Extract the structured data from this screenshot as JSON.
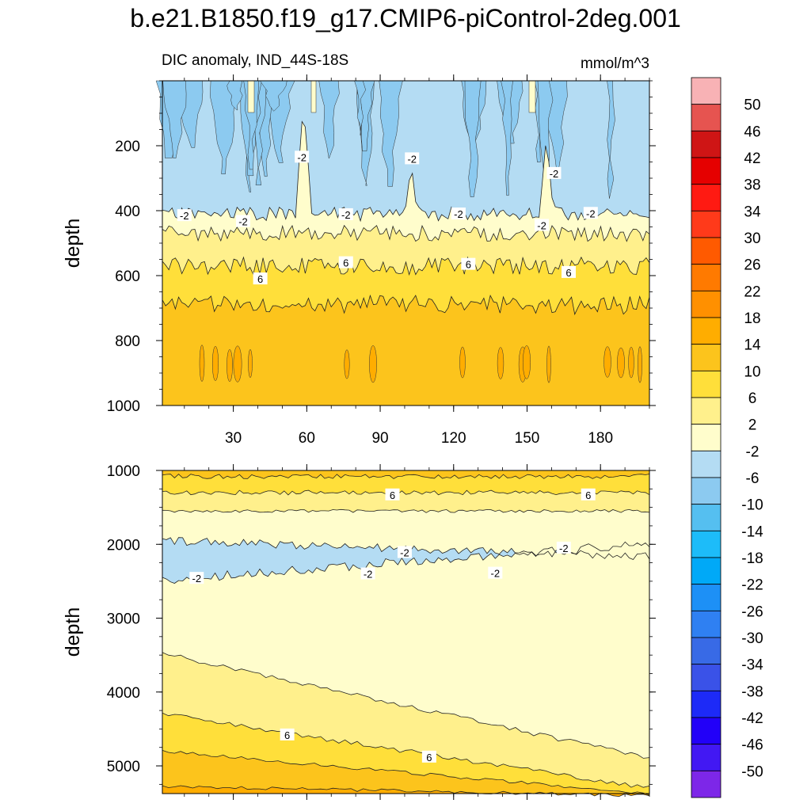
{
  "chart_data": {
    "type": "contour",
    "title": "b.e21.B1850.f19_g17.CMIP6-piControl-2deg.001",
    "subtitle_left": "DIC anomaly, IND_44S-18S",
    "units": "mmol/m^3",
    "panels": [
      {
        "name": "upper",
        "ylabel": "depth",
        "xlim": [
          1,
          200
        ],
        "ylim": [
          0,
          1000
        ],
        "xticks": [
          30,
          60,
          90,
          120,
          150,
          180
        ],
        "xtick_labels": [
          "30",
          "60",
          "90",
          "120",
          "150",
          "180"
        ],
        "yticks": [
          200,
          400,
          600,
          800,
          1000
        ],
        "ytick_labels": [
          "200",
          "400",
          "600",
          "800",
          "1000"
        ],
        "contour_labels": [
          {
            "text": "-2",
            "x": 58,
            "y": 235
          },
          {
            "text": "-2",
            "x": 103,
            "y": 240
          },
          {
            "text": "-2",
            "x": 161,
            "y": 285
          },
          {
            "text": "-2",
            "x": 10,
            "y": 415
          },
          {
            "text": "-2",
            "x": 34,
            "y": 433
          },
          {
            "text": "-2",
            "x": 76,
            "y": 412
          },
          {
            "text": "-2",
            "x": 122,
            "y": 410
          },
          {
            "text": "-2",
            "x": 156,
            "y": 445
          },
          {
            "text": "-2",
            "x": 176,
            "y": 408
          },
          {
            "text": "6",
            "x": 41,
            "y": 610
          },
          {
            "text": "6",
            "x": 76,
            "y": 560
          },
          {
            "text": "6",
            "x": 126,
            "y": 565
          },
          {
            "text": "6",
            "x": 167,
            "y": 590
          }
        ]
      },
      {
        "name": "lower",
        "ylabel": "depth",
        "ylim": [
          1000,
          5375
        ],
        "yticks": [
          1000,
          2000,
          3000,
          4000,
          5000
        ],
        "ytick_labels": [
          "1000",
          "2000",
          "3000",
          "4000",
          "5000"
        ],
        "contour_labels": [
          {
            "text": "6",
            "x": 95,
            "y": 1330
          },
          {
            "text": "6",
            "x": 175,
            "y": 1330
          },
          {
            "text": "-2",
            "x": 100,
            "y": 2110
          },
          {
            "text": "-2",
            "x": 165,
            "y": 2050
          },
          {
            "text": "-2",
            "x": 15,
            "y": 2460
          },
          {
            "text": "-2",
            "x": 85,
            "y": 2400
          },
          {
            "text": "-2",
            "x": 137,
            "y": 2390
          },
          {
            "text": "6",
            "x": 52,
            "y": 4580
          },
          {
            "text": "6",
            "x": 110,
            "y": 4880
          }
        ]
      }
    ],
    "colorbar": {
      "levels": [
        "50",
        "46",
        "42",
        "38",
        "34",
        "30",
        "26",
        "22",
        "18",
        "14",
        "10",
        "6",
        "2",
        "-2",
        "-6",
        "-10",
        "-14",
        "-18",
        "-22",
        "-26",
        "-30",
        "-34",
        "-38",
        "-42",
        "-46",
        "-50"
      ],
      "colors_top_to_bottom": [
        "#f8b2b5",
        "#e65450",
        "#cf1515",
        "#e50000",
        "#ff1a12",
        "#ff3a1a",
        "#ff5a00",
        "#ff7a00",
        "#ff9000",
        "#ffad00",
        "#fcc41c",
        "#ffdf3a",
        "#fff08c",
        "#fffdcc",
        "#b4dcf3",
        "#8ccaf0",
        "#55bff0",
        "#1dbcf9",
        "#00a9f7",
        "#1d90f6",
        "#2f80f2",
        "#386ae6",
        "#3a52e8",
        "#1d2af7",
        "#2200f8",
        "#4218f3",
        "#7d27e8"
      ]
    },
    "fill_colors": {
      "blue_light": "#b4dcf3",
      "blue_mid": "#8ccaf0",
      "cream": "#fffdcc",
      "yellow_pale": "#fff08c",
      "yellow": "#ffdf3a",
      "orange_light": "#fcc41c",
      "orange": "#ffad00"
    }
  }
}
